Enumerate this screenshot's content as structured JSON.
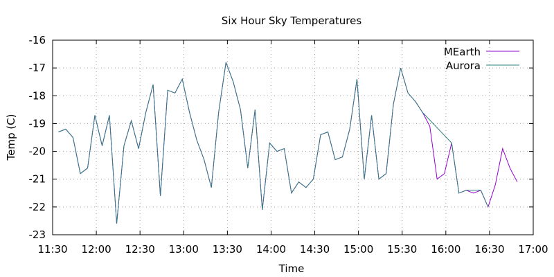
{
  "chart_data": {
    "type": "line",
    "title": "Six Hour Sky Temperatures",
    "xlabel": "Time",
    "ylabel": "Temp (C)",
    "xlim": [
      "11:30",
      "17:00"
    ],
    "ylim": [
      -23,
      -16
    ],
    "x_ticks": [
      "11:30",
      "12:00",
      "12:30",
      "13:00",
      "13:30",
      "14:00",
      "14:30",
      "15:00",
      "15:30",
      "16:00",
      "16:30",
      "17:00"
    ],
    "y_ticks": [
      "-16",
      "-17",
      "-18",
      "-19",
      "-20",
      "-21",
      "-22",
      "-23"
    ],
    "grid": true,
    "legend_position": "top-right",
    "series": [
      {
        "name": "MEarth",
        "color": "#9400d3",
        "points": [
          [
            "11:34",
            -19.3
          ],
          [
            "11:39",
            -19.2
          ],
          [
            "11:44",
            -19.5
          ],
          [
            "11:49",
            -20.8
          ],
          [
            "11:54",
            -20.6
          ],
          [
            "11:59",
            -18.7
          ],
          [
            "12:04",
            -19.8
          ],
          [
            "12:09",
            -18.7
          ],
          [
            "12:14",
            -22.6
          ],
          [
            "12:19",
            -19.8
          ],
          [
            "12:24",
            -18.9
          ],
          [
            "12:29",
            -19.9
          ],
          [
            "12:34",
            -18.6
          ],
          [
            "12:39",
            -17.6
          ],
          [
            "12:44",
            -21.6
          ],
          [
            "12:49",
            -17.8
          ],
          [
            "12:54",
            -17.9
          ],
          [
            "12:59",
            -17.4
          ],
          [
            "13:04",
            -18.6
          ],
          [
            "13:09",
            -19.6
          ],
          [
            "13:14",
            -20.3
          ],
          [
            "13:19",
            -21.3
          ],
          [
            "13:24",
            -18.6
          ],
          [
            "13:29",
            -16.8
          ],
          [
            "13:34",
            -17.5
          ],
          [
            "13:39",
            -18.5
          ],
          [
            "13:44",
            -20.6
          ],
          [
            "13:49",
            -18.5
          ],
          [
            "13:54",
            -22.1
          ],
          [
            "13:59",
            -19.7
          ],
          [
            "14:04",
            -20.0
          ],
          [
            "14:09",
            -19.9
          ],
          [
            "14:14",
            -21.5
          ],
          [
            "14:19",
            -21.1
          ],
          [
            "14:24",
            -21.3
          ],
          [
            "14:29",
            -21.0
          ],
          [
            "14:34",
            -19.4
          ],
          [
            "14:39",
            -19.3
          ],
          [
            "14:44",
            -20.3
          ],
          [
            "14:49",
            -20.2
          ],
          [
            "14:54",
            -19.2
          ],
          [
            "14:59",
            -17.4
          ],
          [
            "15:04",
            -21.0
          ],
          [
            "15:09",
            -18.7
          ],
          [
            "15:14",
            -21.0
          ],
          [
            "15:19",
            -20.8
          ],
          [
            "15:24",
            -18.3
          ],
          [
            "15:29",
            -17.0
          ],
          [
            "15:34",
            -17.9
          ],
          [
            "15:39",
            -18.2
          ],
          [
            "15:44",
            -18.6
          ],
          [
            "15:49",
            -19.1
          ],
          [
            "15:54",
            -21.0
          ],
          [
            "15:59",
            -20.8
          ],
          [
            "16:04",
            -19.7
          ],
          [
            "16:09",
            -21.5
          ],
          [
            "16:14",
            -21.4
          ],
          [
            "16:19",
            -21.5
          ],
          [
            "16:24",
            -21.4
          ],
          [
            "16:29",
            -22.0
          ],
          [
            "16:34",
            -21.2
          ],
          [
            "16:39",
            -19.9
          ],
          [
            "16:44",
            -20.6
          ],
          [
            "16:49",
            -21.1
          ]
        ]
      },
      {
        "name": "Aurora",
        "color": "#2f7f7f",
        "points": [
          [
            "11:34",
            -19.3
          ],
          [
            "11:39",
            -19.2
          ],
          [
            "11:44",
            -19.5
          ],
          [
            "11:49",
            -20.8
          ],
          [
            "11:54",
            -20.6
          ],
          [
            "11:59",
            -18.7
          ],
          [
            "12:04",
            -19.8
          ],
          [
            "12:09",
            -18.7
          ],
          [
            "12:14",
            -22.6
          ],
          [
            "12:19",
            -19.8
          ],
          [
            "12:24",
            -18.9
          ],
          [
            "12:29",
            -19.9
          ],
          [
            "12:34",
            -18.6
          ],
          [
            "12:39",
            -17.6
          ],
          [
            "12:44",
            -21.6
          ],
          [
            "12:49",
            -17.8
          ],
          [
            "12:54",
            -17.9
          ],
          [
            "12:59",
            -17.4
          ],
          [
            "13:04",
            -18.6
          ],
          [
            "13:09",
            -19.6
          ],
          [
            "13:14",
            -20.3
          ],
          [
            "13:19",
            -21.3
          ],
          [
            "13:24",
            -18.6
          ],
          [
            "13:29",
            -16.8
          ],
          [
            "13:34",
            -17.5
          ],
          [
            "13:39",
            -18.5
          ],
          [
            "13:44",
            -20.6
          ],
          [
            "13:49",
            -18.5
          ],
          [
            "13:54",
            -22.1
          ],
          [
            "13:59",
            -19.7
          ],
          [
            "14:04",
            -20.0
          ],
          [
            "14:09",
            -19.9
          ],
          [
            "14:14",
            -21.5
          ],
          [
            "14:19",
            -21.1
          ],
          [
            "14:24",
            -21.3
          ],
          [
            "14:29",
            -21.0
          ],
          [
            "14:34",
            -19.4
          ],
          [
            "14:39",
            -19.3
          ],
          [
            "14:44",
            -20.3
          ],
          [
            "14:49",
            -20.2
          ],
          [
            "14:54",
            -19.2
          ],
          [
            "14:59",
            -17.4
          ],
          [
            "15:04",
            -21.0
          ],
          [
            "15:09",
            -18.7
          ],
          [
            "15:14",
            -21.0
          ],
          [
            "15:19",
            -20.8
          ],
          [
            "15:24",
            -18.3
          ],
          [
            "15:29",
            -17.0
          ],
          [
            "15:34",
            -17.9
          ],
          [
            "15:39",
            -18.2
          ],
          [
            "15:44",
            -18.6
          ],
          [
            "16:04",
            -19.7
          ],
          [
            "16:09",
            -21.5
          ],
          [
            "16:14",
            -21.4
          ],
          [
            "16:19",
            -21.4
          ],
          [
            "16:24",
            -21.4
          ],
          [
            "16:29",
            -22.0
          ]
        ]
      }
    ]
  }
}
